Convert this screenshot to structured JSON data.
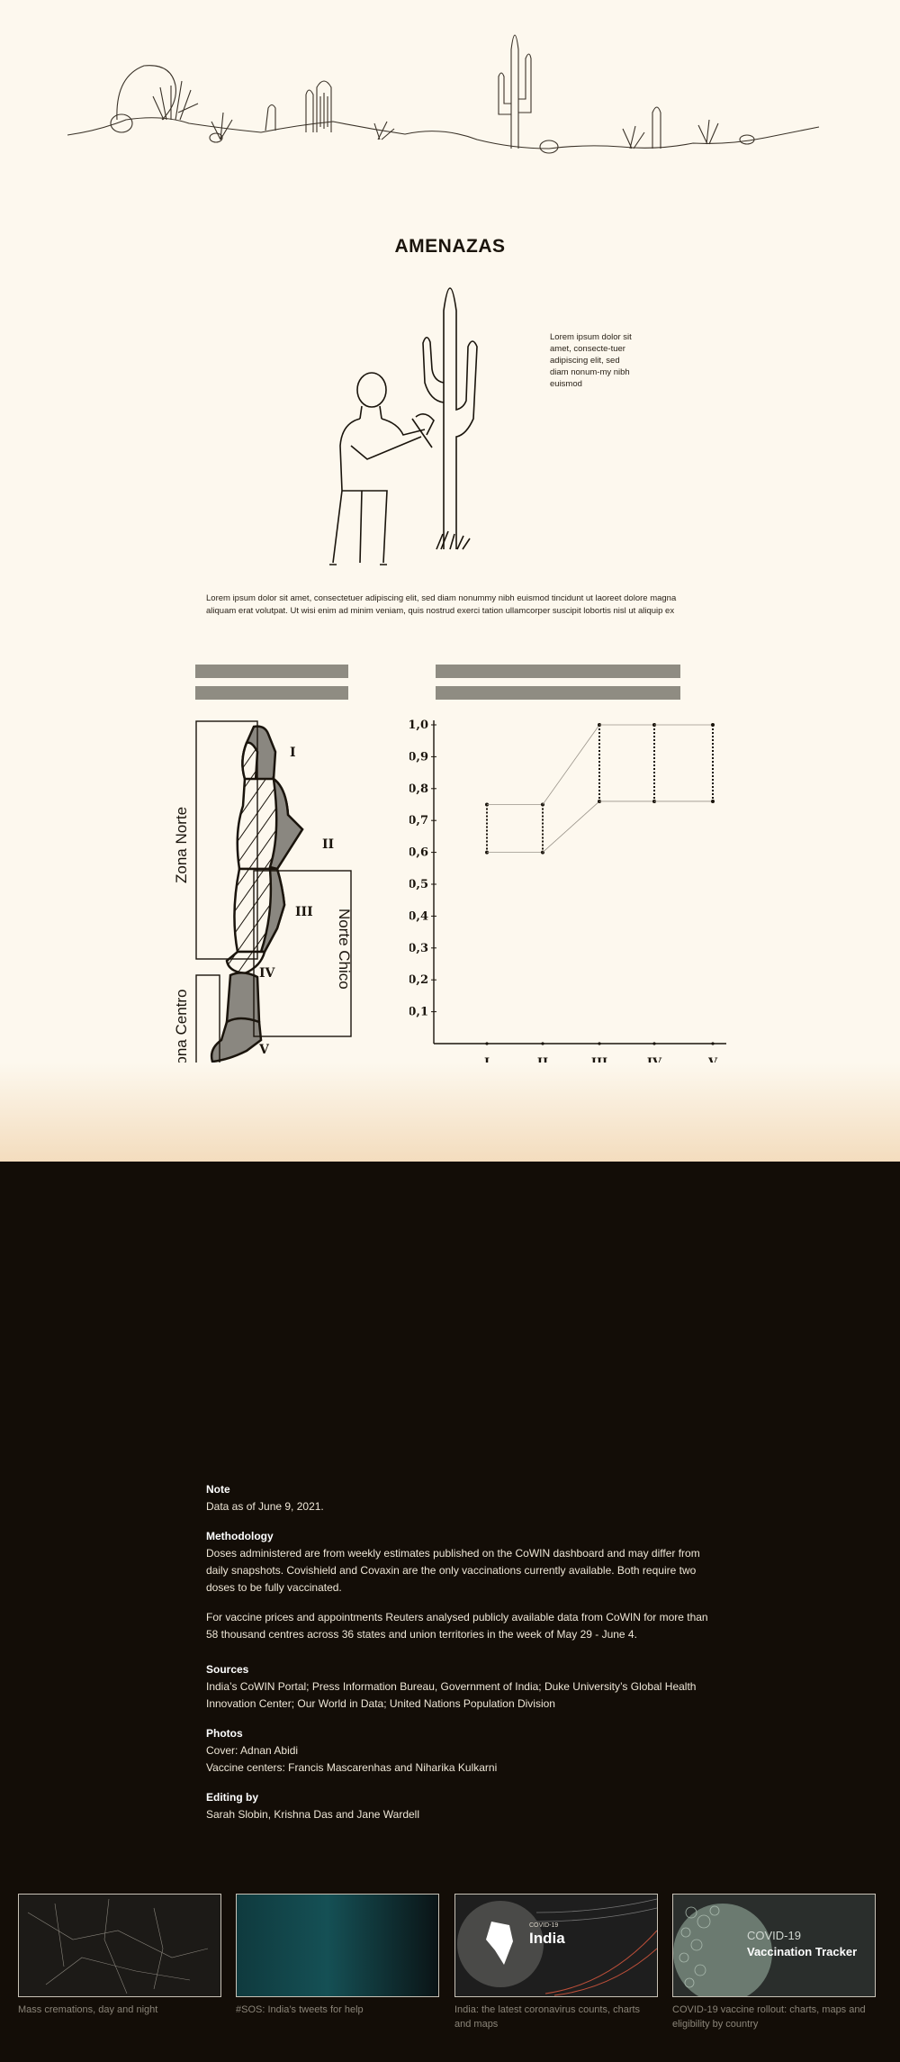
{
  "section": {
    "title": "AMENAZAS",
    "side_note": "Lorem ipsum dolor sit amet, consecte-tuer adipiscing elit, sed diam nonum-my nibh euismod",
    "paragraph": "Lorem ipsum dolor sit amet, consectetuer adipiscing elit, sed diam nonummy nibh euismod tincidunt ut laoreet dolore magna aliquam erat volutpat. Ut wisi enim ad minim veniam, quis nostrud exerci tation ullamcorper suscipit lobortis nisl ut aliquip ex"
  },
  "map": {
    "zones": [
      "Zona Norte",
      "Norte Chico",
      "Zona Centro"
    ],
    "regions": [
      "I",
      "II",
      "III",
      "IV",
      "V"
    ]
  },
  "chart_data": {
    "type": "range",
    "categories": [
      "I",
      "II",
      "III",
      "IV",
      "V"
    ],
    "ranges": [
      {
        "category": "I",
        "low": 0.6,
        "high": 0.75
      },
      {
        "category": "II",
        "low": 0.6,
        "high": 0.75
      },
      {
        "category": "III",
        "low": 0.76,
        "high": 1.0
      },
      {
        "category": "IV",
        "low": 0.76,
        "high": 1.0
      },
      {
        "category": "V",
        "low": 0.76,
        "high": 1.0
      }
    ],
    "yticks": [
      "0,1",
      "0,2",
      "0,3",
      "0,4",
      "0,5",
      "0,6",
      "0,7",
      "0,8",
      "0,9",
      "1,0"
    ],
    "ylim": [
      0,
      1.0
    ],
    "title": "",
    "xlabel": "",
    "ylabel": ""
  },
  "notes": [
    {
      "heading": "Note",
      "paragraphs": [
        "Data as of June 9, 2021."
      ]
    },
    {
      "heading": "Methodology",
      "paragraphs": [
        "Doses administered are from weekly estimates published on the CoWIN dashboard and may differ from daily snapshots. Covishield and Covaxin are the only vaccinations currently available. Both require two doses to be fully vaccinated.",
        "For vaccine prices and appointments Reuters analysed publicly available data from CoWIN for more than 58 thousand centres across 36 states and union territories in the week of May 29 - June 4."
      ]
    },
    {
      "heading": "Sources",
      "paragraphs": [
        "India’s CoWIN Portal; Press Information Bureau, Government of India; Duke University’s Global Health Innovation Center; Our World in Data; United Nations Population Division"
      ]
    },
    {
      "heading": "Photos",
      "paragraphs": [
        "Cover: Adnan Abidi",
        "Vaccine centers: Francis Mascarenhas and Niharika Kulkarni"
      ]
    },
    {
      "heading": "Editing by",
      "paragraphs": [
        "Sarah Slobin, Krishna Das and Jane Wardell"
      ]
    }
  ],
  "related": [
    {
      "caption": "Mass cremations, day and night",
      "overlay": ""
    },
    {
      "caption": "#SOS: India’s tweets for help",
      "overlay": ""
    },
    {
      "caption": "India: the latest coronavirus counts, charts and maps",
      "overlay": "India",
      "overlay_small": "COVID-19"
    },
    {
      "caption": "COVID-19 vaccine rollout: charts, maps and eligibility by country",
      "overlay": "Vaccination Tracker",
      "overlay_small": "COVID-19"
    }
  ],
  "colors": {
    "cream": "#fdf8ee",
    "dark": "#130d07",
    "gray_bar": "#8f8c82",
    "accent_line": "#e8b98a"
  }
}
